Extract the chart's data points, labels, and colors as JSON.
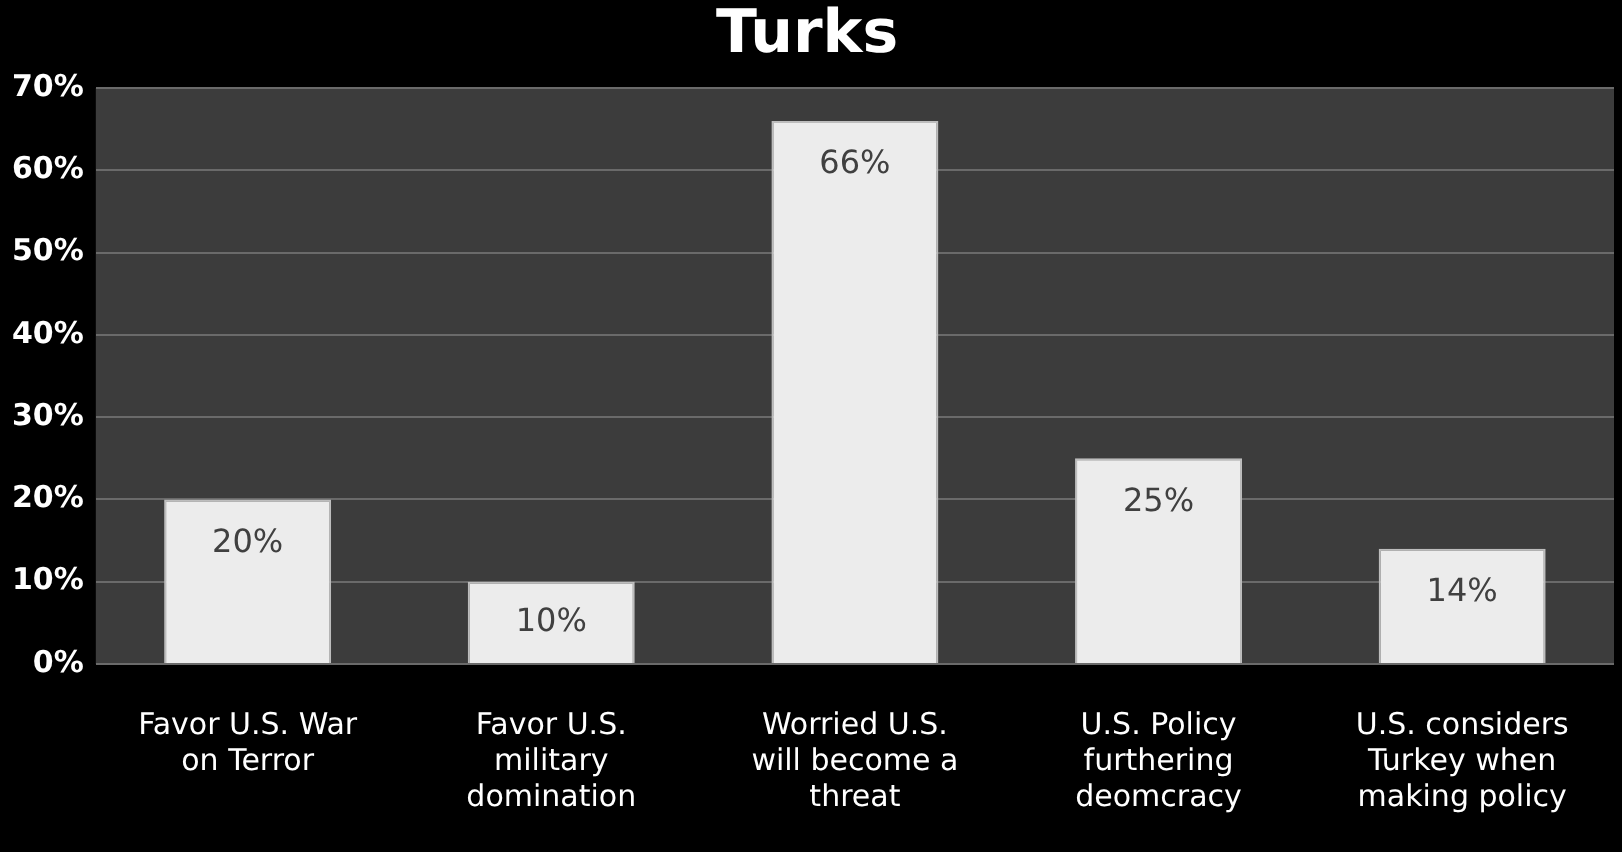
{
  "chart_data": {
    "type": "bar",
    "title": "Turks",
    "categories": [
      "Favor U.S. War on Terror",
      "Favor U.S. military domination",
      "Worried U.S. will become a threat",
      "U.S. Policy furthering deomcracy",
      "U.S. considers Turkey when making policy"
    ],
    "values": [
      20,
      10,
      66,
      25,
      14
    ],
    "color": "#ececec",
    "value_labels": [
      "20%",
      "10%",
      "66%",
      "25%",
      "14%"
    ],
    "ylim": [
      0,
      70
    ],
    "yticks": [
      {
        "value": 0,
        "label": "0%"
      },
      {
        "value": 10,
        "label": "10%"
      },
      {
        "value": 20,
        "label": "20%"
      },
      {
        "value": 30,
        "label": "30%"
      },
      {
        "value": 40,
        "label": "40%"
      },
      {
        "value": 50,
        "label": "50%"
      },
      {
        "value": 60,
        "label": "60%"
      },
      {
        "value": 70,
        "label": "70%"
      }
    ],
    "grid": "y",
    "legend": false
  }
}
